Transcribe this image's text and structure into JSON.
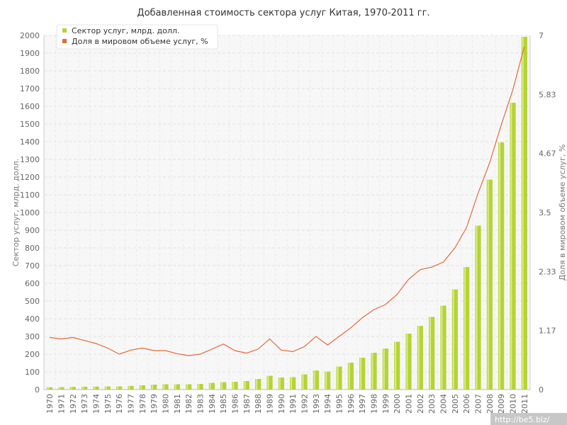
{
  "chart_data": {
    "type": "bar",
    "title": "Добавленная стоимость сектора услуг Китая, 1970-2011 гг.",
    "ylabel_left": "Сектор услуг, млрд. долл.",
    "ylabel_right": "Доля в мировом объеме услуг, %",
    "categories": [
      "1970",
      "1971",
      "1972",
      "1973",
      "1974",
      "1975",
      "1976",
      "1977",
      "1978",
      "1979",
      "1980",
      "1981",
      "1982",
      "1983",
      "1984",
      "1985",
      "1986",
      "1987",
      "1988",
      "1989",
      "1990",
      "1991",
      "1992",
      "1993",
      "1994",
      "1995",
      "1996",
      "1997",
      "1998",
      "1999",
      "2000",
      "2001",
      "2002",
      "2003",
      "2004",
      "2005",
      "2006",
      "2007",
      "2008",
      "2009",
      "2010",
      "2011"
    ],
    "ylim_left": [
      0,
      2000
    ],
    "yticks_left": [
      "0",
      "100",
      "200",
      "300",
      "400",
      "500",
      "600",
      "700",
      "800",
      "900",
      "1000",
      "1100",
      "1200",
      "1300",
      "1400",
      "1500",
      "1600",
      "1700",
      "1800",
      "1900",
      "2000"
    ],
    "ylim_right": [
      0,
      7
    ],
    "yticks_right": [
      {
        "value": 0,
        "label": "0"
      },
      {
        "value": 1.1667,
        "label": "1.17"
      },
      {
        "value": 2.3333,
        "label": "2.33"
      },
      {
        "value": 3.5,
        "label": "3.5"
      },
      {
        "value": 4.6667,
        "label": "4.67"
      },
      {
        "value": 5.8333,
        "label": "5.83"
      },
      {
        "value": 7,
        "label": "7"
      }
    ],
    "series": [
      {
        "name": "Сектор услуг, млрд. долл.",
        "type": "bar",
        "axis": "left",
        "color": "#b5d334",
        "values": [
          13,
          14,
          15,
          16,
          17,
          18,
          18,
          21,
          24,
          28,
          30,
          30,
          30,
          32,
          38,
          42,
          44,
          48,
          60,
          78,
          68,
          70,
          86,
          108,
          102,
          130,
          152,
          180,
          208,
          232,
          270,
          316,
          360,
          410,
          474,
          566,
          692,
          926,
          1186,
          1396,
          1620,
          1992
        ]
      },
      {
        "name": "Доля в мировом объеме услуг, %",
        "type": "line",
        "axis": "right",
        "color": "#e26a3a",
        "values": [
          1.03,
          1.0,
          1.03,
          0.97,
          0.91,
          0.82,
          0.7,
          0.78,
          0.82,
          0.77,
          0.77,
          0.71,
          0.67,
          0.7,
          0.8,
          0.9,
          0.77,
          0.72,
          0.8,
          1.0,
          0.78,
          0.75,
          0.85,
          1.05,
          0.88,
          1.05,
          1.22,
          1.42,
          1.58,
          1.68,
          1.88,
          2.18,
          2.37,
          2.42,
          2.52,
          2.8,
          3.2,
          3.88,
          4.48,
          5.23,
          5.92,
          6.78
        ]
      }
    ],
    "grid": true,
    "legend": "top-left"
  },
  "watermark": "http://be5.biz/"
}
